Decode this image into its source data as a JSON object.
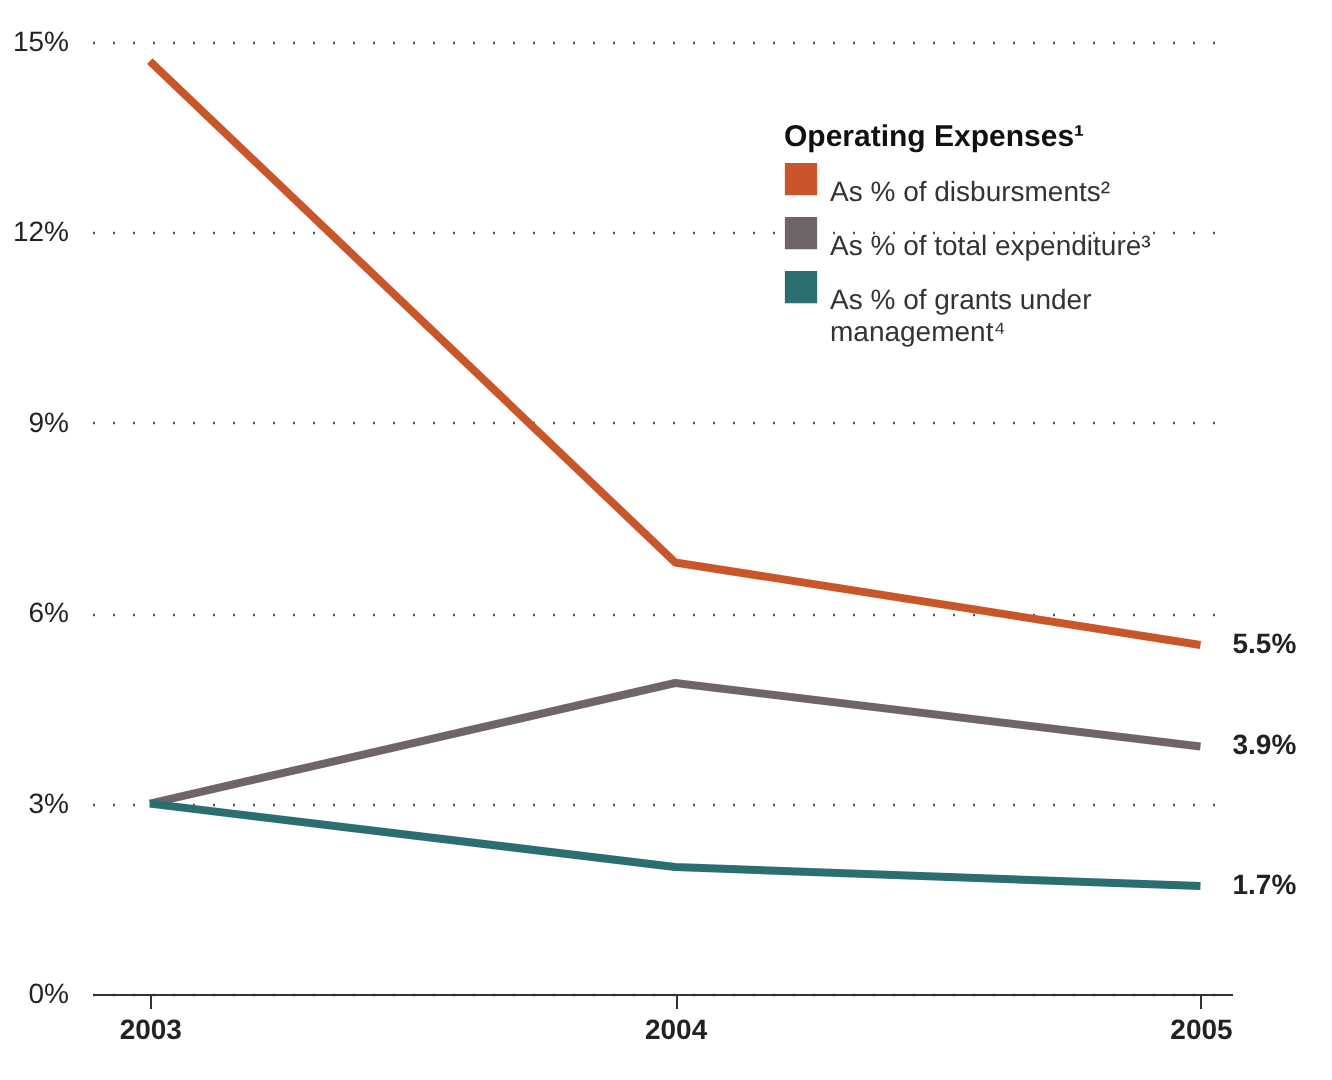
{
  "chart_data": {
    "type": "line",
    "legend_title": "Operating Expenses¹",
    "categories": [
      "2003",
      "2004",
      "2005"
    ],
    "series": [
      {
        "name": "As % of disbursments²",
        "color": "#c8562a",
        "values": [
          14.7,
          6.8,
          5.5
        ],
        "value_labels": [
          null,
          null,
          "5.5%"
        ]
      },
      {
        "name": "As % of total expenditure³",
        "color": "#6f6568",
        "values": [
          3.0,
          4.9,
          3.9
        ],
        "value_labels": [
          null,
          null,
          "3.9%"
        ]
      },
      {
        "name": "As % of grants under management⁴",
        "color": "#2b6e72",
        "values": [
          3.0,
          2.0,
          1.7
        ],
        "value_labels": [
          null,
          null,
          "1.7%"
        ]
      }
    ],
    "ylim": [
      0,
      15
    ],
    "yticks": [
      {
        "value": 0,
        "label": "0%"
      },
      {
        "value": 3,
        "label": "3%"
      },
      {
        "value": 6,
        "label": "6%"
      },
      {
        "value": 9,
        "label": "9%"
      },
      {
        "value": 12,
        "label": "12%"
      },
      {
        "value": 15,
        "label": "15%"
      }
    ],
    "grid": "y",
    "legend": "top right",
    "marker": "none",
    "line_style": "solid"
  }
}
